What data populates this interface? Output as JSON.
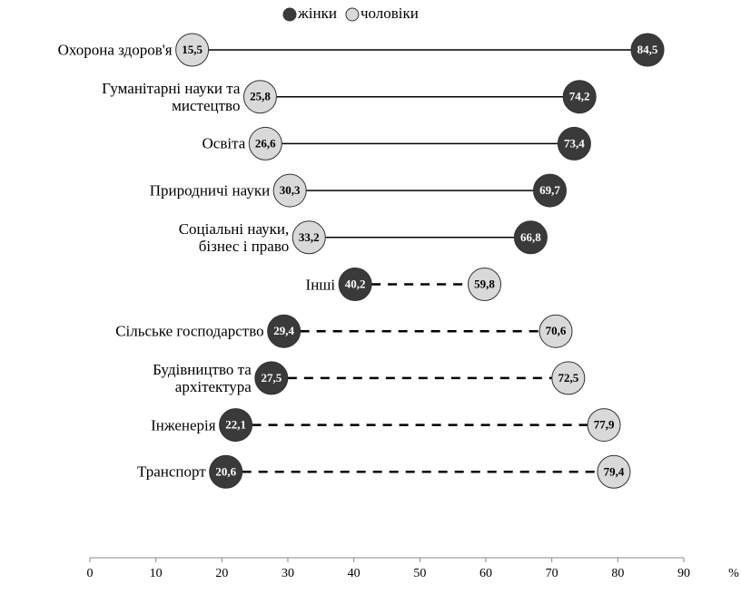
{
  "chart_data": {
    "type": "dumbbell",
    "categories": [
      "Охорона здоров'я",
      "Гуманітарні науки та\nмистецтво",
      "Освіта",
      "Природничі науки",
      "Соціальні науки,\nбізнес і право",
      "Інші",
      "Сільське господарство",
      "Будівництво та\nархітектура",
      "Інженерія",
      "Транспорт"
    ],
    "series": [
      {
        "name": "жінки",
        "color": "#3a3a3a",
        "values": [
          84.5,
          74.2,
          73.4,
          69.7,
          66.8,
          40.2,
          29.4,
          27.5,
          22.1,
          20.6
        ],
        "value_labels": [
          "84,5",
          "74,2",
          "73,4",
          "69,7",
          "66,8",
          "40,2",
          "29,4",
          "27,5",
          "22,1",
          "20,6"
        ]
      },
      {
        "name": "чоловіки",
        "color": "#d9d9d9",
        "values": [
          15.5,
          25.8,
          26.6,
          30.3,
          33.2,
          59.8,
          70.6,
          72.5,
          77.9,
          79.4
        ],
        "value_labels": [
          "15,5",
          "25,8",
          "26,6",
          "30,3",
          "33,2",
          "59,8",
          "70,6",
          "72,5",
          "77,9",
          "79,4"
        ]
      }
    ],
    "x_label": "%",
    "xlim": [
      0,
      90
    ],
    "xticks": [
      0,
      10,
      20,
      30,
      40,
      50,
      60,
      70,
      80,
      90
    ],
    "legend": "top"
  }
}
